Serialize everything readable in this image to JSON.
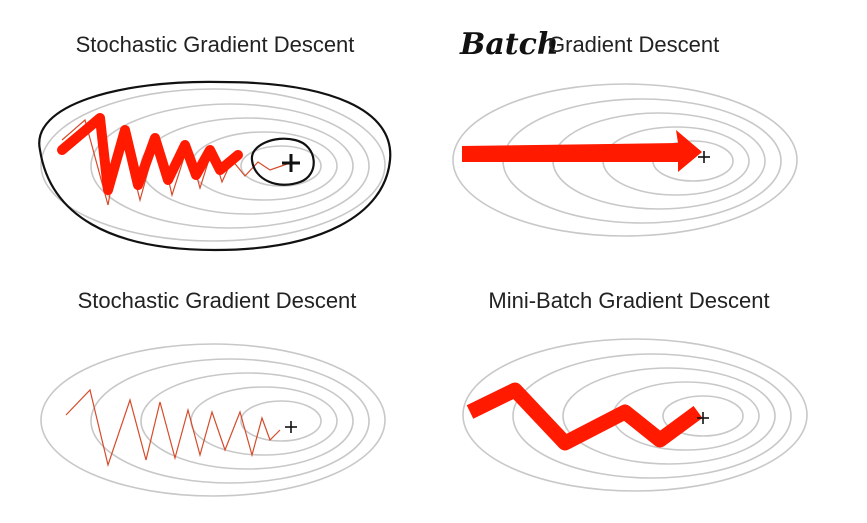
{
  "panels": [
    {
      "title": "Stochastic Gradient Descent"
    },
    {
      "annotation": "Batch",
      "title": "Gradient Descent"
    },
    {
      "title": "Stochastic Gradient Descent"
    },
    {
      "title": "Mini-Batch Gradient Descent"
    }
  ]
}
